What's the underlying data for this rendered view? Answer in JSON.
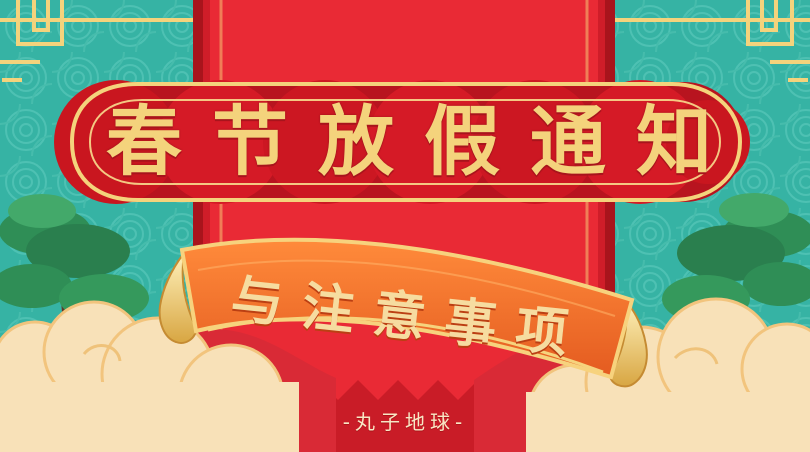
{
  "title": {
    "characters": [
      "春",
      "节",
      "放",
      "假",
      "通",
      "知"
    ]
  },
  "subtitle": {
    "characters": [
      "与",
      "注",
      "意",
      "事",
      "项"
    ]
  },
  "footer": {
    "text": "-丸子地球-"
  },
  "colors": {
    "teal": "#36b3a4",
    "red": "#d91f2b",
    "dark_red": "#a81420",
    "orange": "#f2722b",
    "gold": "#f4d37c",
    "cloud": "#f8e1b8",
    "pine": "#2f8e56"
  },
  "icons": [
    "pine-tree-icon",
    "cloud-icon",
    "scroll-icon",
    "frame-corner-icon"
  ]
}
